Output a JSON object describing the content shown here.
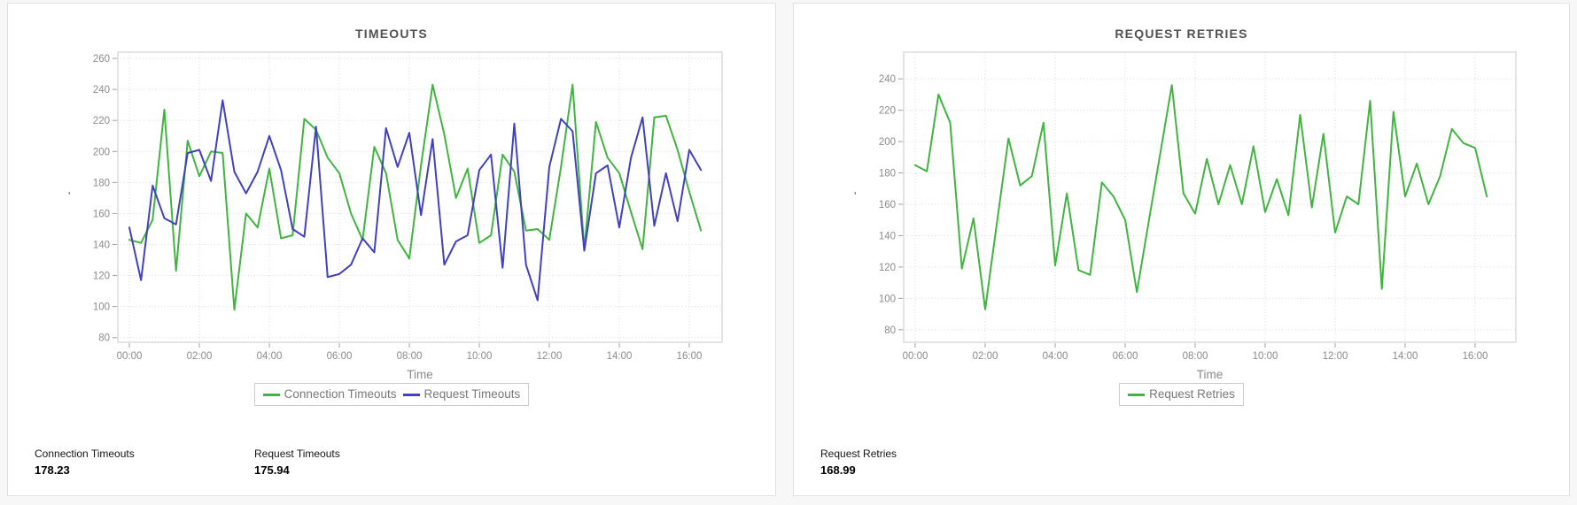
{
  "page": {
    "background": "#f7f7f7"
  },
  "colors": {
    "green_series": "#3fb53f",
    "blue_series": "#4040c0",
    "grid": "#d8d8d8",
    "axis_border": "#c9c9c9",
    "tick": "#a0a0a0",
    "tick_label": "#8b8b8b",
    "axis_title": "#8a8a8a"
  },
  "chart_data": [
    {
      "type": "line",
      "title": "TIMEOUTS",
      "xlabel": "Time",
      "ylabel": "'",
      "x_ticks": [
        "00:00",
        "02:00",
        "04:00",
        "06:00",
        "08:00",
        "10:00",
        "12:00",
        "14:00",
        "16:00"
      ],
      "y_ticks": [
        80,
        100,
        120,
        140,
        160,
        180,
        200,
        220,
        240,
        260
      ],
      "ylim": [
        77,
        264
      ],
      "x_interval_minutes": 20,
      "grid": true,
      "legend_position": "bottom",
      "series": [
        {
          "name": "Connection Timeouts",
          "color": "#3fb53f",
          "values": [
            143,
            141,
            156,
            227,
            123,
            207,
            184,
            200,
            199,
            98,
            160,
            151,
            189,
            144,
            146,
            221,
            214,
            196,
            186,
            160,
            143,
            203,
            186,
            143,
            131,
            191,
            243,
            211,
            170,
            189,
            141,
            146,
            198,
            187,
            149,
            150,
            143,
            190,
            243,
            137,
            219,
            196,
            186,
            161,
            137,
            222,
            223,
            201,
            174,
            149
          ]
        },
        {
          "name": "Request Timeouts",
          "color": "#4040c0",
          "values": [
            151,
            117,
            178,
            157,
            153,
            199,
            201,
            181,
            233,
            187,
            173,
            187,
            210,
            188,
            150,
            145,
            216,
            119,
            121,
            127,
            144,
            135,
            215,
            190,
            212,
            159,
            208,
            127,
            142,
            146,
            188,
            198,
            125,
            218,
            127,
            104,
            190,
            221,
            213,
            136,
            186,
            191,
            151,
            196,
            222,
            152,
            186,
            155,
            201,
            188
          ]
        }
      ]
    },
    {
      "type": "line",
      "title": "REQUEST RETRIES",
      "xlabel": "Time",
      "ylabel": "'",
      "x_ticks": [
        "00:00",
        "02:00",
        "04:00",
        "06:00",
        "08:00",
        "10:00",
        "12:00",
        "14:00",
        "16:00"
      ],
      "y_ticks": [
        80,
        100,
        120,
        140,
        160,
        180,
        200,
        220,
        240
      ],
      "ylim": [
        72,
        257
      ],
      "x_interval_minutes": 20,
      "grid": true,
      "legend_position": "bottom",
      "series": [
        {
          "name": "Request Retries",
          "color": "#3fb53f",
          "values": [
            185,
            181,
            230,
            212,
            119,
            151,
            93,
            148,
            202,
            172,
            178,
            212,
            121,
            167,
            118,
            115,
            174,
            165,
            150,
            104,
            148,
            192,
            236,
            167,
            154,
            189,
            160,
            185,
            160,
            197,
            155,
            176,
            153,
            217,
            158,
            205,
            142,
            165,
            160,
            226,
            106,
            219,
            165,
            186,
            160,
            178,
            208,
            199,
            196,
            165
          ]
        }
      ]
    }
  ],
  "panels": [
    {
      "y_axis_mark": "'",
      "stats": [
        {
          "label": "Connection Timeouts",
          "value": "178.23"
        },
        {
          "label": "Request Timeouts",
          "value": "175.94"
        }
      ]
    },
    {
      "y_axis_mark": "'",
      "stats": [
        {
          "label": "Request Retries",
          "value": "168.99"
        }
      ]
    }
  ]
}
